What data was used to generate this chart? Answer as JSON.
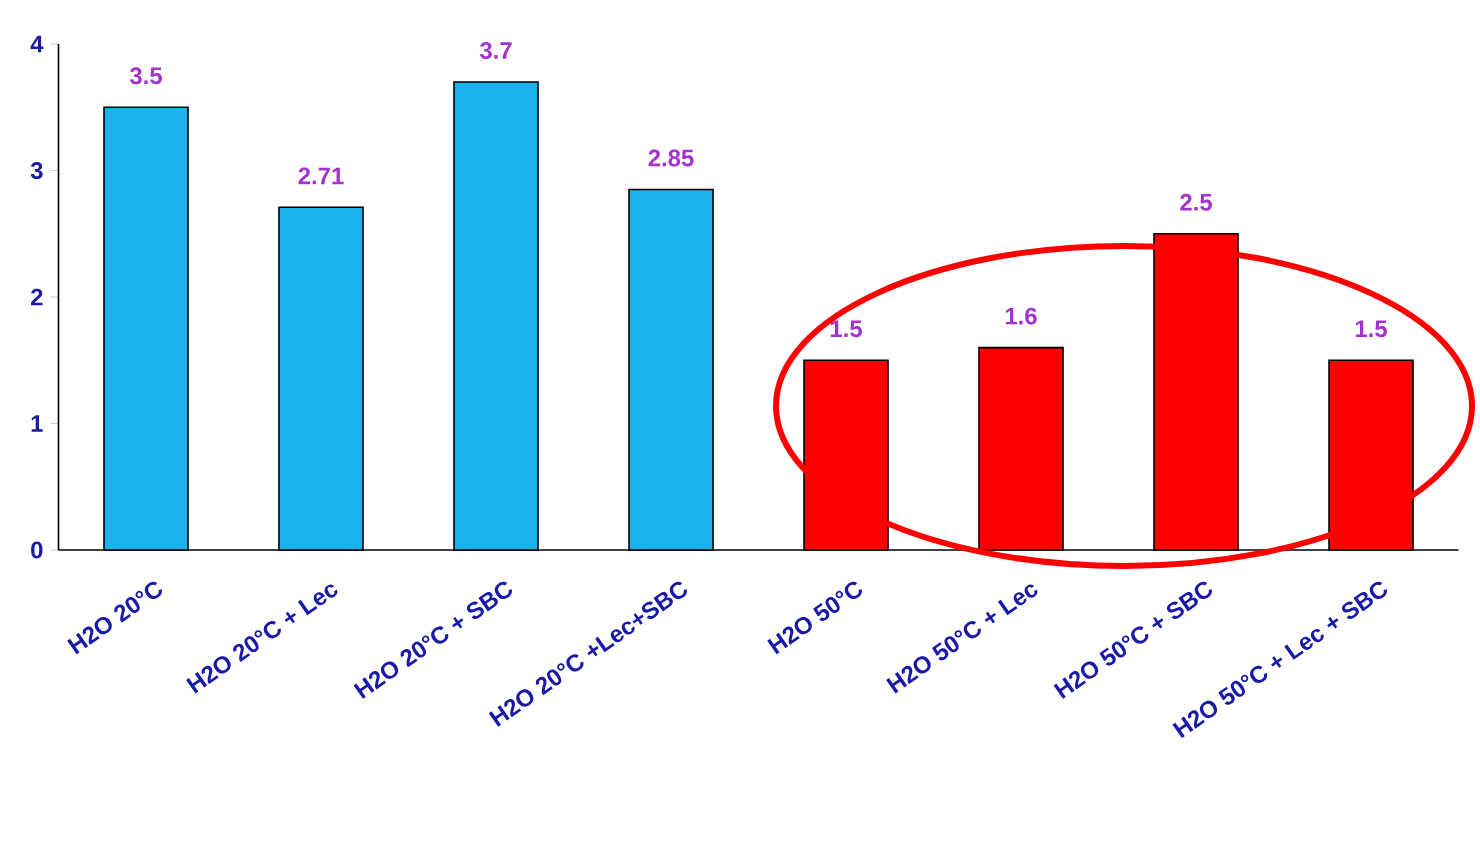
{
  "chart_data": {
    "type": "bar",
    "categories": [
      "H2O 20°C",
      "H2O 20°C + Lec",
      "H2O 20°C + SBC",
      "H2O 20°C +Lec+SBC",
      "H2O 50°C",
      "H2O 50°C + Lec",
      "H2O 50°C + SBC",
      "H2O 50°C + Lec + SBC"
    ],
    "values": [
      3.5,
      2.71,
      3.7,
      2.85,
      1.5,
      1.6,
      2.5,
      1.5
    ],
    "colors": [
      "#19b2ec",
      "#19b2ec",
      "#19b2ec",
      "#19b2ec",
      "#ff0000",
      "#ff0000",
      "#ff0000",
      "#ff0000"
    ],
    "ylim": [
      0,
      4
    ],
    "yticks": [
      0,
      1,
      2,
      3,
      4
    ],
    "data_labels": true
  }
}
